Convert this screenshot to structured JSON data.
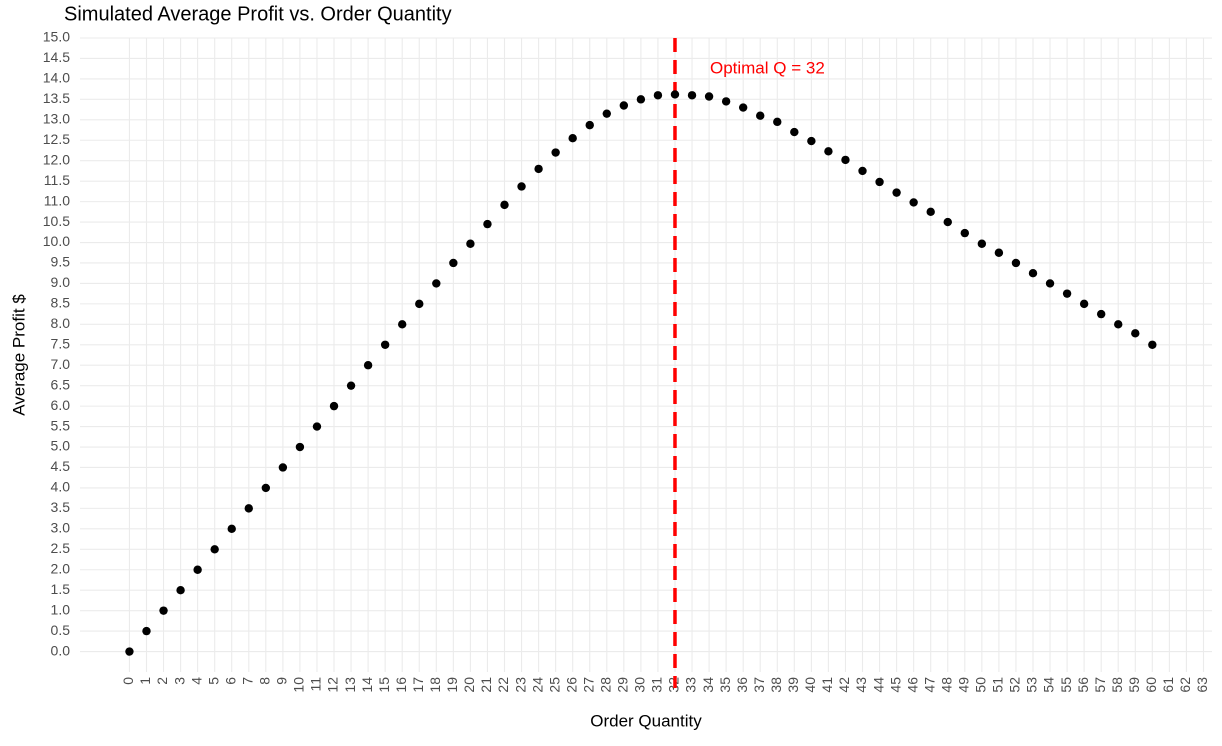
{
  "chart_data": {
    "type": "scatter",
    "title": "Simulated Average Profit vs. Order Quantity",
    "x_label": "Order Quantity",
    "y_label": "Average Profit $",
    "x": [
      0,
      1,
      2,
      3,
      4,
      5,
      6,
      7,
      8,
      9,
      10,
      11,
      12,
      13,
      14,
      15,
      16,
      17,
      18,
      19,
      20,
      21,
      22,
      23,
      24,
      25,
      26,
      27,
      28,
      29,
      30,
      31,
      32,
      33,
      34,
      35,
      36,
      37,
      38,
      39,
      40,
      41,
      42,
      43,
      44,
      45,
      46,
      47,
      48,
      49,
      50,
      51,
      52,
      53,
      54,
      55,
      56,
      57,
      58,
      59,
      60
    ],
    "values": [
      0,
      0.5,
      1,
      1.5,
      2,
      2.5,
      3,
      3.5,
      4,
      4.5,
      5,
      5.5,
      6,
      6.5,
      7,
      7.5,
      8,
      8.5,
      9,
      9.5,
      9.97,
      10.45,
      10.92,
      11.37,
      11.8,
      12.2,
      12.55,
      12.87,
      13.15,
      13.35,
      13.5,
      13.6,
      13.62,
      13.6,
      13.57,
      13.45,
      13.3,
      13.1,
      12.95,
      12.7,
      12.48,
      12.23,
      12.02,
      11.75,
      11.48,
      11.22,
      10.98,
      10.75,
      10.5,
      10.23,
      9.97,
      9.75,
      9.5,
      9.25,
      9,
      8.75,
      8.5,
      8.25,
      8,
      7.78,
      7.5
    ],
    "color": "#000000",
    "xlim": [
      -2.9,
      63.5
    ],
    "ylim": [
      -0.5,
      15
    ],
    "xticks": [
      0,
      1,
      2,
      3,
      4,
      5,
      6,
      7,
      8,
      9,
      10,
      11,
      12,
      13,
      14,
      15,
      16,
      17,
      18,
      19,
      20,
      21,
      22,
      23,
      24,
      25,
      26,
      27,
      28,
      29,
      30,
      31,
      32,
      33,
      34,
      35,
      36,
      37,
      38,
      39,
      40,
      41,
      42,
      43,
      44,
      45,
      46,
      47,
      48,
      49,
      50,
      51,
      52,
      53,
      54,
      55,
      56,
      57,
      58,
      59,
      60,
      61,
      62,
      63
    ],
    "yticks": [
      {
        "value": 0,
        "label": "0.0"
      },
      0.5,
      {
        "value": 1,
        "label": "1.0"
      },
      1.5,
      {
        "value": 2,
        "label": "2.0"
      },
      2.5,
      {
        "value": 3,
        "label": "3.0"
      },
      3.5,
      {
        "value": 4,
        "label": "4.0"
      },
      4.5,
      {
        "value": 5,
        "label": "5.0"
      },
      5.5,
      {
        "value": 6,
        "label": "6.0"
      },
      6.5,
      {
        "value": 7,
        "label": "7.0"
      },
      7.5,
      {
        "value": 8,
        "label": "8.0"
      },
      8.5,
      {
        "value": 9,
        "label": "9.0"
      },
      9.5,
      {
        "value": 10,
        "label": "10.0"
      },
      10.5,
      {
        "value": 11,
        "label": "11.0"
      },
      11.5,
      {
        "value": 12,
        "label": "12.0"
      },
      12.5,
      {
        "value": 13,
        "label": "13.0"
      },
      13.5,
      {
        "value": 14,
        "label": "14.0"
      },
      14.5,
      {
        "value": 15,
        "label": "15.0"
      }
    ],
    "grid": true,
    "vline": {
      "x": 32,
      "color": "#ff0000",
      "label": "Optimal Q = 32"
    }
  }
}
